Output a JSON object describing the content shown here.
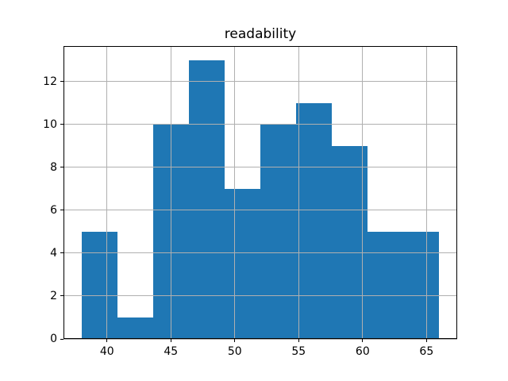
{
  "figure": {
    "background": "#ffffff"
  },
  "chart_data": {
    "type": "bar",
    "subtype": "histogram",
    "title": "readability",
    "xlabel": "",
    "ylabel": "",
    "bin_edges": [
      38.0,
      40.8,
      43.6,
      46.4,
      49.2,
      52.0,
      54.8,
      57.6,
      60.4,
      63.2,
      66.0
    ],
    "values": [
      5,
      1,
      10,
      13,
      7,
      10,
      11,
      9,
      5,
      5
    ],
    "xticks": [
      40,
      45,
      50,
      55,
      60,
      65
    ],
    "yticks": [
      0,
      2,
      4,
      6,
      8,
      10,
      12
    ],
    "xlim": [
      36.6,
      67.4
    ],
    "ylim": [
      0,
      13.65
    ],
    "grid": true,
    "legend": false,
    "bar_color": "#1f77b4",
    "grid_color": "#b0b0b0",
    "spine_color": "#000000",
    "text_color": "#000000"
  }
}
